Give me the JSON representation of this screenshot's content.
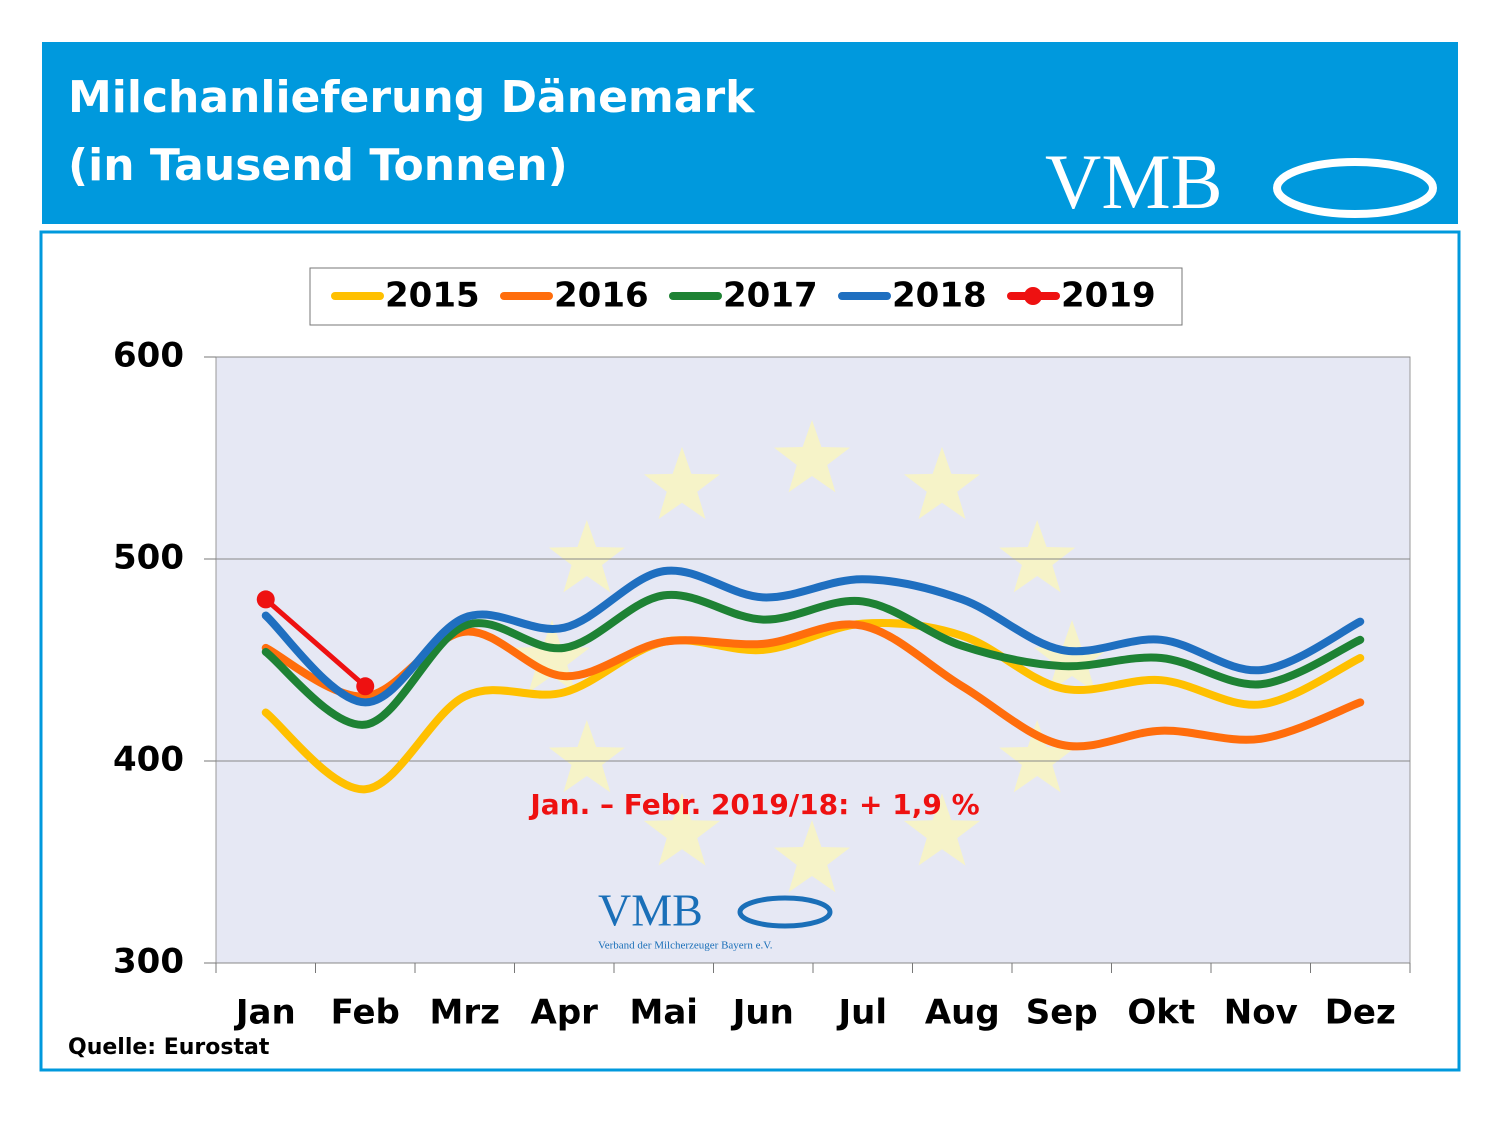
{
  "chart_data": {
    "type": "line",
    "title": "Milchanlieferung Dänemark",
    "subtitle": "(in Tausend Tonnen)",
    "logo": "VMB",
    "watermark": "VMB",
    "watermark_caption": "Verband der Milcherzeuger Bayern e.V.",
    "annotation": "Jan. – Febr. 2019/18:  + 1,9 %",
    "source": "Quelle: Eurostat",
    "categories": [
      "Jan",
      "Feb",
      "Mrz",
      "Apr",
      "Mai",
      "Jun",
      "Jul",
      "Aug",
      "Sep",
      "Okt",
      "Nov",
      "Dez"
    ],
    "series": [
      {
        "name": "2015",
        "color": "#ffc000",
        "values": [
          424,
          386,
          432,
          434,
          459,
          455,
          468,
          462,
          436,
          440,
          428,
          451
        ]
      },
      {
        "name": "2016",
        "color": "#ff6d0c",
        "values": [
          456,
          432,
          464,
          442,
          459,
          458,
          467,
          437,
          408,
          415,
          411,
          429
        ]
      },
      {
        "name": "2017",
        "color": "#1e8234",
        "values": [
          454,
          418,
          467,
          456,
          482,
          470,
          479,
          457,
          447,
          451,
          438,
          460
        ]
      },
      {
        "name": "2018",
        "color": "#1f6fc0",
        "values": [
          472,
          429,
          471,
          466,
          494,
          481,
          490,
          480,
          455,
          460,
          445,
          469
        ]
      },
      {
        "name": "2019",
        "color": "#ee1111",
        "markers": true,
        "values": [
          480,
          437,
          null,
          null,
          null,
          null,
          null,
          null,
          null,
          null,
          null,
          null
        ]
      }
    ],
    "ylim": [
      300,
      600
    ],
    "yticks": [
      300,
      400,
      500,
      600
    ],
    "grid": true
  }
}
